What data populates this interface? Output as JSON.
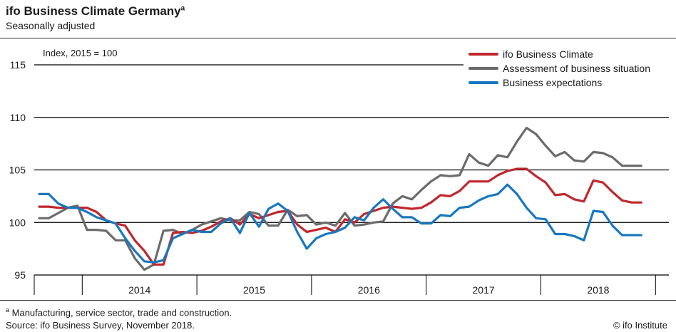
{
  "header": {
    "title": "ifo Business Climate Germany",
    "title_marker": "a",
    "subtitle": "Seasonally adjusted"
  },
  "footer": {
    "footnote_marker": "a",
    "footnote": "Manufacturing, service sector, trade and construction.",
    "source": "Source: ifo Business Survey, November 2018.",
    "copyright": "© ifo Institute"
  },
  "chart_data": {
    "type": "line",
    "title": "ifo Business Climate Germany",
    "subtitle": "Seasonally adjusted",
    "unit_label": "Index, 2015 = 100",
    "xlabel": "",
    "ylabel": "",
    "ylim": [
      95,
      115
    ],
    "yticks": [
      95,
      100,
      105,
      110,
      115
    ],
    "grid": true,
    "legend_position": "top-right",
    "x": [
      "2013-08",
      "2013-09",
      "2013-10",
      "2013-11",
      "2013-12",
      "2014-01",
      "2014-02",
      "2014-03",
      "2014-04",
      "2014-05",
      "2014-06",
      "2014-07",
      "2014-08",
      "2014-09",
      "2014-10",
      "2014-11",
      "2014-12",
      "2015-01",
      "2015-02",
      "2015-03",
      "2015-04",
      "2015-05",
      "2015-06",
      "2015-07",
      "2015-08",
      "2015-09",
      "2015-10",
      "2015-11",
      "2015-12",
      "2016-01",
      "2016-02",
      "2016-03",
      "2016-04",
      "2016-05",
      "2016-06",
      "2016-07",
      "2016-08",
      "2016-09",
      "2016-10",
      "2016-11",
      "2016-12",
      "2017-01",
      "2017-02",
      "2017-03",
      "2017-04",
      "2017-05",
      "2017-06",
      "2017-07",
      "2017-08",
      "2017-09",
      "2017-10",
      "2017-11",
      "2017-12",
      "2018-01",
      "2018-02",
      "2018-03",
      "2018-04",
      "2018-05",
      "2018-06",
      "2018-07",
      "2018-08",
      "2018-09",
      "2018-10",
      "2018-11"
    ],
    "year_labels": [
      "2014",
      "2015",
      "2016",
      "2017",
      "2018"
    ],
    "series": [
      {
        "name": "ifo Business Climate",
        "color": "#c0272d",
        "values": [
          101.5,
          101.5,
          101.4,
          101.4,
          101.4,
          101.4,
          101.0,
          100.2,
          99.9,
          99.7,
          98.3,
          97.3,
          96.0,
          96.0,
          99.0,
          99.1,
          99.0,
          99.2,
          99.6,
          100.1,
          100.4,
          99.8,
          100.8,
          100.4,
          100.7,
          101.0,
          101.1,
          99.8,
          99.1,
          99.3,
          99.5,
          99.1,
          100.3,
          100.0,
          100.8,
          101.1,
          101.4,
          101.5,
          101.4,
          101.3,
          101.4,
          101.9,
          102.6,
          102.5,
          103.0,
          103.9,
          103.9,
          103.9,
          104.5,
          104.9,
          105.1,
          105.1,
          104.4,
          103.8,
          102.6,
          102.7,
          102.2,
          102.0,
          104.0,
          103.8,
          102.9,
          102.1,
          101.9,
          101.9
        ]
      },
      {
        "name": "Assessment of business situation",
        "color": "#6b6b6b",
        "values": [
          100.4,
          100.4,
          100.9,
          101.4,
          101.6,
          99.3,
          99.3,
          99.2,
          98.3,
          98.3,
          96.6,
          95.5,
          96.0,
          99.2,
          99.3,
          98.9,
          99.3,
          99.8,
          100.1,
          100.4,
          100.2,
          100.2,
          101.0,
          100.8,
          99.7,
          99.7,
          101.2,
          100.6,
          100.7,
          99.8,
          100.0,
          99.7,
          100.9,
          99.7,
          99.8,
          100.0,
          100.1,
          101.8,
          102.5,
          102.2,
          103.1,
          103.9,
          104.5,
          104.4,
          104.5,
          106.5,
          105.7,
          105.4,
          106.4,
          106.2,
          107.7,
          109.0,
          108.4,
          107.3,
          106.3,
          106.7,
          105.9,
          105.8,
          106.7,
          106.6,
          106.2,
          105.4,
          105.4,
          105.4
        ]
      },
      {
        "name": "Business expectations",
        "color": "#1878be",
        "values": [
          102.7,
          102.7,
          101.8,
          101.4,
          101.4,
          101.0,
          100.5,
          100.2,
          99.9,
          98.5,
          97.3,
          96.3,
          96.2,
          96.4,
          98.5,
          98.9,
          99.3,
          99.1,
          99.1,
          99.9,
          100.4,
          99.0,
          100.9,
          99.6,
          101.3,
          101.8,
          101.1,
          99.1,
          97.5,
          98.5,
          98.9,
          99.1,
          99.5,
          100.5,
          100.2,
          101.4,
          102.2,
          101.3,
          100.5,
          100.5,
          99.9,
          99.9,
          100.7,
          100.6,
          101.4,
          101.5,
          102.1,
          102.5,
          102.7,
          103.6,
          102.7,
          101.4,
          100.4,
          100.3,
          98.9,
          98.9,
          98.7,
          98.3,
          101.1,
          101.0,
          99.7,
          98.8,
          98.8,
          98.8
        ]
      }
    ]
  }
}
